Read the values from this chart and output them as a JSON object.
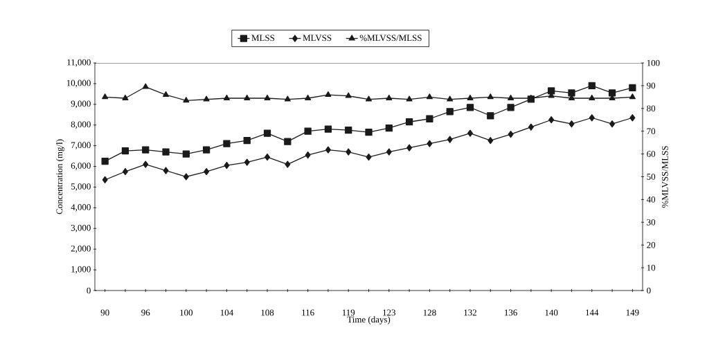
{
  "chart_data": {
    "type": "line",
    "xlabel": "Time (days)",
    "ylabel": "Concentration (mg/l)",
    "y2label": "%MLVSS/MLSS",
    "categories": [
      "90",
      null,
      "96",
      null,
      "100",
      null,
      "104",
      null,
      "108",
      null,
      "116",
      null,
      "119",
      null,
      "123",
      null,
      "128",
      null,
      "132",
      null,
      "136",
      null,
      "140",
      null,
      "144",
      null,
      "149"
    ],
    "series": [
      {
        "name": "MLSS",
        "color": "#1a1a1a",
        "marker": "square",
        "values": [
          6250,
          6750,
          6800,
          6700,
          6600,
          6800,
          7100,
          7250,
          7600,
          7200,
          7700,
          7800,
          7750,
          7650,
          7850,
          8150,
          8300,
          8650,
          8850,
          8450,
          8850,
          9250,
          9650,
          9550,
          9900,
          9550,
          9800
        ]
      },
      {
        "name": "MLVSS",
        "color": "#1a1a1a",
        "marker": "diamond",
        "values": [
          5350,
          5750,
          6100,
          5800,
          5500,
          5750,
          6050,
          6200,
          6450,
          6100,
          6550,
          6800,
          6700,
          6450,
          6700,
          6900,
          7100,
          7300,
          7600,
          7250,
          7550,
          7900,
          8250,
          8050,
          8350,
          8050,
          8350
        ]
      },
      {
        "name": "%MLVSS/MLSS",
        "color": "#1a1a1a",
        "marker": "triangle",
        "axis": "y2",
        "values": [
          85,
          84.5,
          89.5,
          86,
          83.5,
          84,
          84.5,
          84.5,
          84.5,
          84,
          84.5,
          86,
          85.5,
          84,
          84.5,
          84,
          85,
          84,
          84.5,
          85,
          84.5,
          84.5,
          85.5,
          84.5,
          84.5,
          84.5,
          85
        ]
      }
    ],
    "ylim": [
      0,
      11000
    ],
    "yticks": [
      0,
      {
        "value": 1000,
        "label": "1,000"
      },
      {
        "value": 2000,
        "label": "2,000"
      },
      {
        "value": 3000,
        "label": "3,000"
      },
      {
        "value": 4000,
        "label": "4,000"
      },
      {
        "value": 5000,
        "label": "5,000"
      },
      {
        "value": 6000,
        "label": "6,000"
      },
      {
        "value": 7000,
        "label": "7,000"
      },
      {
        "value": 8000,
        "label": "8,000"
      },
      {
        "value": 9000,
        "label": "9,000"
      },
      {
        "value": 10000,
        "label": "10,000"
      },
      {
        "value": 11000,
        "label": "11,000"
      }
    ],
    "y2lim": [
      0,
      100
    ],
    "y2ticks": [
      0,
      10,
      20,
      30,
      40,
      50,
      60,
      70,
      80,
      90,
      100
    ],
    "legend": "top",
    "grid": false,
    "line_style": "solid"
  }
}
